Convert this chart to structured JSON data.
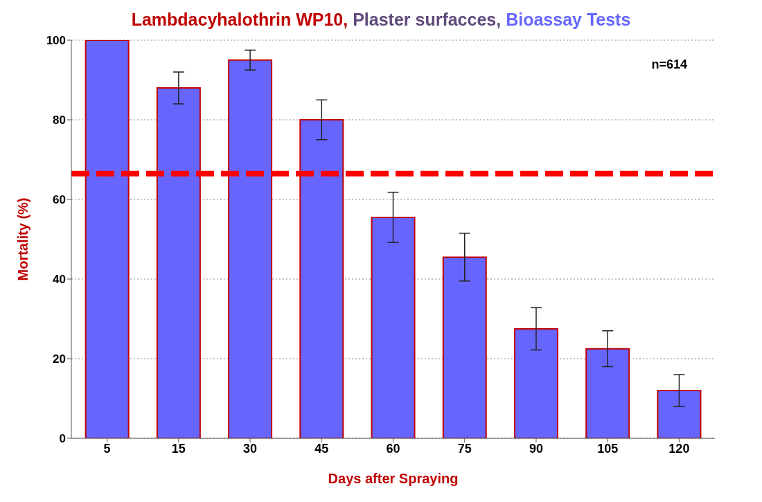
{
  "chart_data": {
    "type": "bar",
    "title": "Lambdacyhalothrin WP10, Plaster surfacces, Bioassay Tests",
    "xlabel": "Days after Spraying",
    "ylabel": "Mortality (%)",
    "categories": [
      "5",
      "15",
      "30",
      "45",
      "60",
      "75",
      "90",
      "105",
      "120"
    ],
    "values": [
      100,
      88,
      95,
      80,
      55.5,
      45.5,
      27.5,
      22.5,
      12
    ],
    "errors": [
      null,
      4,
      2.5,
      5,
      6.3,
      6,
      5.3,
      4.5,
      4
    ],
    "color": "#6666ff",
    "ylim": [
      0,
      100
    ],
    "yticks": [
      0,
      20,
      40,
      60,
      80,
      100
    ],
    "grid": "y",
    "ref_lines": [
      {
        "axis": "y",
        "value": 66.5,
        "color": "#ff0000",
        "line_style": "dashed"
      }
    ],
    "annotations": [
      "n=614"
    ]
  }
}
